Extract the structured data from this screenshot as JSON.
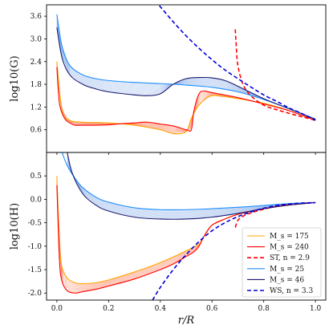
{
  "chart_data": {
    "type": "line",
    "xlabel": "r/R",
    "x_ticks": [
      "0.0",
      "0.2",
      "0.4",
      "0.6",
      "0.8",
      "1.0"
    ],
    "x_tick_values": [
      0.0,
      0.2,
      0.4,
      0.6,
      0.8,
      1.0
    ],
    "xlim": [
      -0.04,
      1.04
    ],
    "panels": [
      {
        "ylabel": "log10(G)",
        "ylim": [
          0.0,
          3.9
        ],
        "y_ticks": [
          "0.6",
          "1.2",
          "1.8",
          "2.4",
          "3.0",
          "3.6"
        ],
        "y_tick_values": [
          0.6,
          1.2,
          1.8,
          2.4,
          3.0,
          3.6
        ],
        "series": [
          {
            "key": "ms175",
            "style": "solid",
            "color": "#ffa500",
            "x": [
              0.0,
              0.02,
              0.05,
              0.1,
              0.2,
              0.3,
              0.4,
              0.45,
              0.5,
              0.52,
              0.55,
              0.6,
              0.7,
              0.8,
              0.9,
              1.0
            ],
            "y": [
              2.4,
              1.1,
              0.85,
              0.8,
              0.78,
              0.72,
              0.6,
              0.5,
              0.55,
              0.9,
              1.25,
              1.5,
              1.42,
              1.3,
              1.1,
              0.85
            ]
          },
          {
            "key": "ms240",
            "style": "solid",
            "color": "#ff0000",
            "x": [
              0.0,
              0.01,
              0.03,
              0.05,
              0.07,
              0.1,
              0.15,
              0.2,
              0.25,
              0.3,
              0.35,
              0.4,
              0.45,
              0.5,
              0.52,
              0.53,
              0.55,
              0.57,
              0.6,
              0.7,
              0.8,
              0.9,
              1.0
            ],
            "y": [
              2.25,
              1.3,
              0.9,
              0.78,
              0.72,
              0.72,
              0.72,
              0.73,
              0.76,
              0.78,
              0.8,
              0.75,
              0.7,
              0.6,
              0.6,
              1.1,
              1.55,
              1.62,
              1.58,
              1.45,
              1.28,
              1.1,
              0.85
            ]
          },
          {
            "key": "st",
            "style": "dashed",
            "color": "#ff0000",
            "x": [
              0.69,
              0.693,
              0.7,
              0.72,
              0.75,
              0.8,
              0.85,
              0.9,
              0.95,
              1.0
            ],
            "y": [
              3.25,
              2.9,
              2.3,
              1.8,
              1.5,
              1.25,
              1.13,
              1.03,
              0.94,
              0.85
            ]
          },
          {
            "key": "ms25",
            "style": "solid",
            "color": "#1e90ff",
            "x": [
              0.0,
              0.02,
              0.05,
              0.1,
              0.15,
              0.2,
              0.3,
              0.4,
              0.5,
              0.6,
              0.7,
              0.8,
              0.9,
              1.0
            ],
            "y": [
              3.65,
              2.8,
              2.3,
              2.05,
              1.95,
              1.9,
              1.85,
              1.82,
              1.78,
              1.72,
              1.6,
              1.4,
              1.15,
              0.88
            ]
          },
          {
            "key": "ms46",
            "style": "solid",
            "color": "#191970",
            "x": [
              0.0,
              0.02,
              0.05,
              0.1,
              0.15,
              0.2,
              0.3,
              0.35,
              0.4,
              0.45,
              0.5,
              0.55,
              0.6,
              0.65,
              0.7,
              0.8,
              0.9,
              1.0
            ],
            "y": [
              3.3,
              2.5,
              2.05,
              1.8,
              1.68,
              1.6,
              1.52,
              1.5,
              1.55,
              1.8,
              1.95,
              1.98,
              1.97,
              1.9,
              1.75,
              1.42,
              1.15,
              0.88
            ]
          },
          {
            "key": "ws",
            "style": "dashed",
            "color": "#0000dd",
            "x": [
              0.38,
              0.4,
              0.45,
              0.5,
              0.55,
              0.6,
              0.65,
              0.7,
              0.75,
              0.8,
              0.85,
              0.9,
              0.95,
              1.0
            ],
            "y": [
              4.0,
              3.85,
              3.45,
              3.08,
              2.75,
              2.45,
              2.18,
              1.95,
              1.73,
              1.52,
              1.35,
              1.17,
              1.02,
              0.85
            ]
          }
        ]
      },
      {
        "ylabel": "log10(H)",
        "ylim": [
          -2.15,
          1.0
        ],
        "y_ticks": [
          "-2.0",
          "-1.5",
          "-1.0",
          "-0.5",
          "0.0",
          "0.5"
        ],
        "y_tick_values": [
          -2.0,
          -1.5,
          -1.0,
          -0.5,
          0.0,
          0.5
        ],
        "series": [
          {
            "key": "ms175",
            "style": "solid",
            "color": "#ffa500",
            "x": [
              0.0,
              0.01,
              0.02,
              0.04,
              0.07,
              0.1,
              0.15,
              0.2,
              0.3,
              0.4,
              0.5,
              0.55,
              0.57,
              0.6,
              0.65,
              0.7,
              0.8,
              0.9,
              1.0
            ],
            "y": [
              0.5,
              -1.0,
              -1.45,
              -1.68,
              -1.78,
              -1.8,
              -1.78,
              -1.72,
              -1.55,
              -1.35,
              -1.1,
              -0.95,
              -0.78,
              -0.55,
              -0.42,
              -0.32,
              -0.2,
              -0.12,
              -0.07
            ]
          },
          {
            "key": "ms240",
            "style": "solid",
            "color": "#ff0000",
            "x": [
              0.0,
              0.01,
              0.02,
              0.04,
              0.07,
              0.1,
              0.15,
              0.2,
              0.3,
              0.4,
              0.45,
              0.5,
              0.53,
              0.55,
              0.57,
              0.6,
              0.65,
              0.7,
              0.8,
              0.9,
              1.0
            ],
            "y": [
              0.3,
              -1.3,
              -1.75,
              -1.95,
              -2.0,
              -1.97,
              -1.92,
              -1.85,
              -1.7,
              -1.5,
              -1.38,
              -1.22,
              -1.12,
              -1.0,
              -0.78,
              -0.55,
              -0.42,
              -0.32,
              -0.2,
              -0.12,
              -0.07
            ]
          },
          {
            "key": "st",
            "style": "dashed",
            "color": "#ff0000",
            "x": [
              0.69,
              0.7,
              0.72,
              0.75,
              0.8,
              0.85,
              0.9,
              0.95,
              1.0
            ],
            "y": [
              -0.6,
              -0.45,
              -0.36,
              -0.29,
              -0.21,
              -0.15,
              -0.11,
              -0.08,
              -0.07
            ]
          },
          {
            "key": "ms25",
            "style": "solid",
            "color": "#1e90ff",
            "x": [
              0.02,
              0.04,
              0.07,
              0.1,
              0.15,
              0.2,
              0.3,
              0.4,
              0.5,
              0.6,
              0.7,
              0.8,
              0.9,
              1.0
            ],
            "y": [
              1.0,
              0.72,
              0.45,
              0.25,
              0.05,
              -0.06,
              -0.18,
              -0.22,
              -0.22,
              -0.2,
              -0.17,
              -0.13,
              -0.09,
              -0.07
            ]
          },
          {
            "key": "ms46",
            "style": "solid",
            "color": "#191970",
            "x": [
              0.04,
              0.06,
              0.1,
              0.15,
              0.2,
              0.3,
              0.4,
              0.5,
              0.6,
              0.7,
              0.8,
              0.9,
              1.0
            ],
            "y": [
              1.0,
              0.55,
              0.12,
              -0.12,
              -0.25,
              -0.38,
              -0.42,
              -0.42,
              -0.38,
              -0.3,
              -0.2,
              -0.12,
              -0.07
            ]
          },
          {
            "key": "ws",
            "style": "dashed",
            "color": "#0000dd",
            "x": [
              0.37,
              0.4,
              0.45,
              0.5,
              0.55,
              0.6,
              0.65,
              0.7,
              0.75,
              0.8,
              0.85,
              0.9,
              0.95,
              1.0
            ],
            "y": [
              -2.15,
              -1.88,
              -1.5,
              -1.18,
              -0.9,
              -0.67,
              -0.5,
              -0.37,
              -0.27,
              -0.19,
              -0.13,
              -0.1,
              -0.08,
              -0.07
            ]
          }
        ]
      }
    ],
    "faint_family_count": 14,
    "legend": {
      "position": "lower-right of bottom panel",
      "entries": [
        {
          "key": "ms175",
          "label": "M_s = 175",
          "color": "#ffa500",
          "style": "solid"
        },
        {
          "key": "ms240",
          "label": "M_s = 240",
          "color": "#ff0000",
          "style": "solid"
        },
        {
          "key": "st",
          "label": "ST, n = 2.9",
          "color": "#ff0000",
          "style": "dashed"
        },
        {
          "key": "ms25",
          "label": "M_s = 25",
          "color": "#1e90ff",
          "style": "solid"
        },
        {
          "key": "ms46",
          "label": "M_s = 46",
          "color": "#191970",
          "style": "solid"
        },
        {
          "key": "ws",
          "label": "WS, n = 3.3",
          "color": "#0000dd",
          "style": "dashed"
        }
      ]
    }
  }
}
